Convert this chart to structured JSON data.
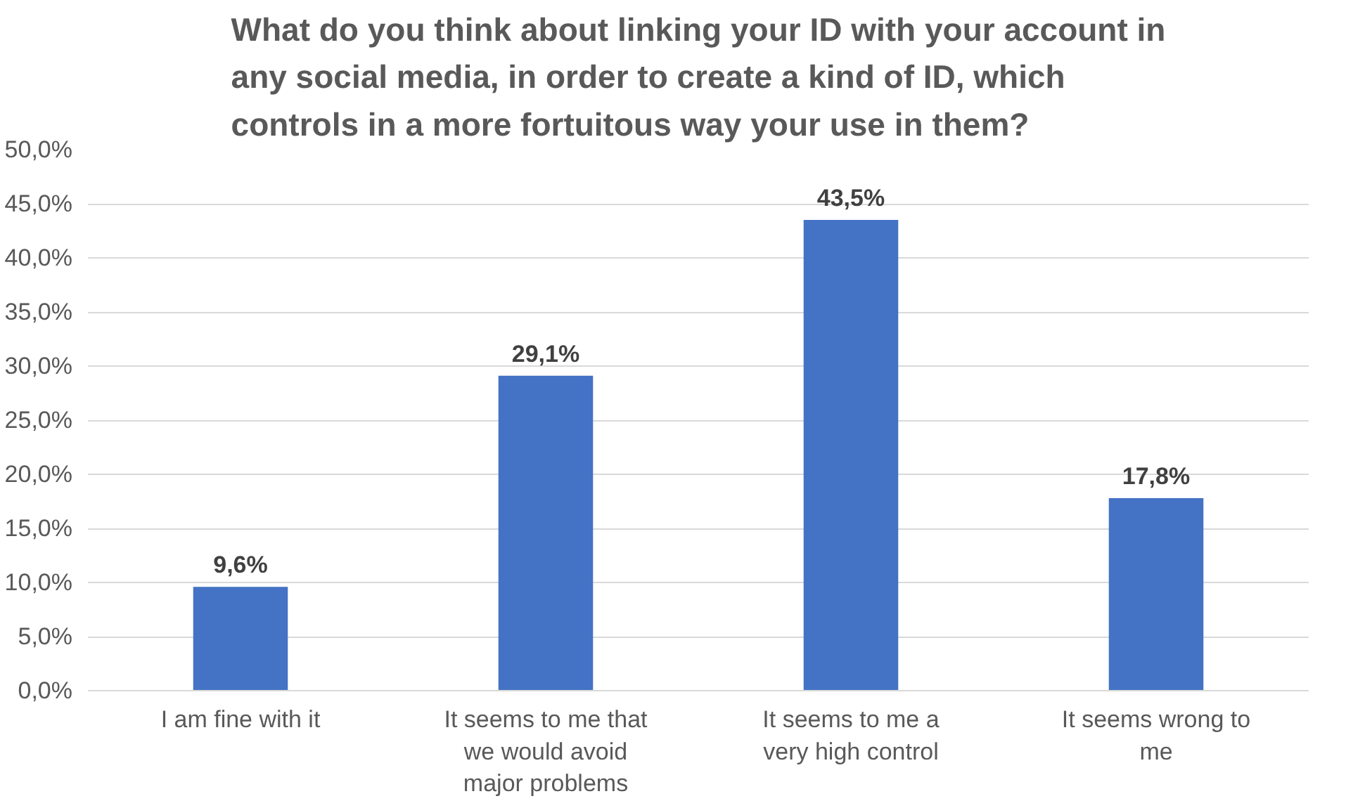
{
  "chart_data": {
    "type": "bar",
    "title": "What do you think about linking your ID with your account in\nany social media, in order to create a kind of ID, which\ncontrols in a more fortuitous way your use in them?",
    "categories": [
      "I am fine with it",
      "It seems to me that we would avoid major problems",
      "It seems to me a very high control",
      "It seems wrong to me"
    ],
    "values": [
      9.6,
      29.1,
      43.5,
      17.8
    ],
    "value_labels": [
      "9,6%",
      "29,1%",
      "43,5%",
      "17,8%"
    ],
    "color": "#4472c4",
    "ylim": [
      0,
      50
    ],
    "yticks": [
      {
        "value": 0,
        "label": "0,0%"
      },
      {
        "value": 5,
        "label": "5,0%"
      },
      {
        "value": 10,
        "label": "10,0%"
      },
      {
        "value": 15,
        "label": "15,0%"
      },
      {
        "value": 20,
        "label": "20,0%"
      },
      {
        "value": 25,
        "label": "25,0%"
      },
      {
        "value": 30,
        "label": "30,0%"
      },
      {
        "value": 35,
        "label": "35,0%"
      },
      {
        "value": 40,
        "label": "40,0%"
      },
      {
        "value": 45,
        "label": "45,0%"
      },
      {
        "value": 50,
        "label": "50,0%"
      }
    ],
    "grid": "y"
  }
}
